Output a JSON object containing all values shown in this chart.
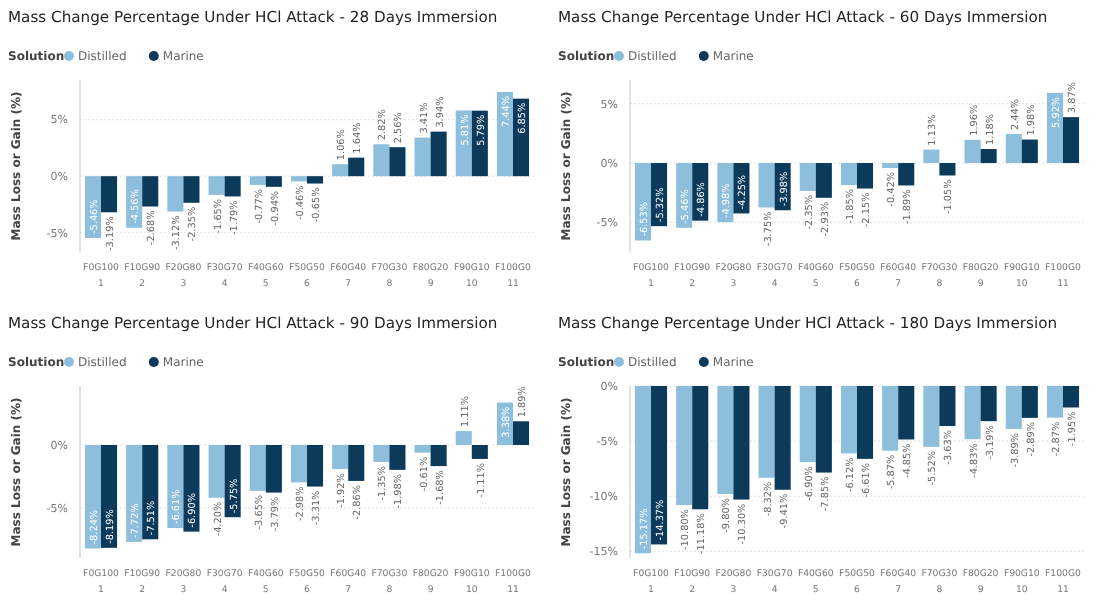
{
  "chart_data": [
    {
      "type": "bar",
      "title": "Mass Change Percentage Under HCl Attack - 28 Days Immersion",
      "legend_title": "Solution",
      "legend": "top left",
      "ylabel": "Mass Loss or Gain (%)",
      "grid": "y",
      "categories": [
        "F0G100\n1",
        "F10G90\n2",
        "F20G80\n3",
        "F30G70\n4",
        "F40G60\n5",
        "F50G50\n6",
        "F60G40\n7",
        "F70G30\n8",
        "F80G20\n9",
        "F90G10\n10",
        "F100G0\n11"
      ],
      "ylim": [
        -6.7,
        8.5
      ],
      "yticks": [
        {
          "value": -5,
          "label": "-5%"
        },
        {
          "value": 0,
          "label": "0%"
        },
        {
          "value": 5,
          "label": "5%"
        }
      ],
      "series": [
        {
          "name": "Distilled",
          "color": "#8dbfdd",
          "values": [
            -5.46,
            -4.56,
            -3.12,
            -1.65,
            -0.77,
            -0.46,
            1.06,
            2.82,
            3.41,
            5.81,
            7.44
          ],
          "value_labels": [
            "-5.46%",
            "-4.56%",
            "-3.12%",
            "-1.65%",
            "-0.77%",
            "-0.46%",
            "1.06%",
            "2.82%",
            "3.41%",
            "5.81%",
            "7.44%"
          ]
        },
        {
          "name": "Marine",
          "color": "#0b3a5a",
          "values": [
            -3.19,
            -2.68,
            -2.35,
            -1.79,
            -0.94,
            -0.65,
            1.64,
            2.56,
            3.94,
            5.79,
            6.85
          ],
          "value_labels": [
            "-3.19%",
            "-2.68%",
            "-2.35%",
            "-1.79%",
            "-0.94%",
            "-0.65%",
            "1.64%",
            "2.56%",
            "3.94%",
            "5.79%",
            "6.85%"
          ]
        }
      ]
    },
    {
      "type": "bar",
      "title": "Mass Change Percentage Under HCl Attack - 60 Days Immersion",
      "legend_title": "Solution",
      "legend": "top left",
      "ylabel": "Mass Loss or Gain (%)",
      "grid": "y",
      "categories": [
        "F0G100\n1",
        "F10G90\n2",
        "F20G80\n3",
        "F30G70\n4",
        "F40G60\n5",
        "F50G50\n6",
        "F60G40\n7",
        "F70G30\n8",
        "F80G20\n9",
        "F90G10\n10",
        "F100G0\n11"
      ],
      "ylim": [
        -7.5,
        7
      ],
      "yticks": [
        {
          "value": -5,
          "label": "-5%"
        },
        {
          "value": 0,
          "label": "0%"
        },
        {
          "value": 5,
          "label": "5%"
        }
      ],
      "series": [
        {
          "name": "Distilled",
          "color": "#8dbfdd",
          "values": [
            -6.53,
            -5.46,
            -4.98,
            -3.75,
            -2.35,
            -1.85,
            -0.42,
            1.13,
            1.96,
            2.44,
            5.92
          ],
          "value_labels": [
            "-6.53%",
            "-5.46%",
            "-4.98%",
            "-3.75%",
            "-2.35%",
            "-1.85%",
            "-0.42%",
            "1.13%",
            "1.96%",
            "2.44%",
            "5.92%"
          ]
        },
        {
          "name": "Marine",
          "color": "#0b3a5a",
          "values": [
            -5.32,
            -4.86,
            -4.25,
            -3.98,
            -2.93,
            -2.15,
            -1.89,
            -1.05,
            1.18,
            1.98,
            3.87
          ],
          "value_labels": [
            "-5.32%",
            "-4.86%",
            "-4.25%",
            "-3.98%",
            "-2.93%",
            "-2.15%",
            "-1.89%",
            "-1.05%",
            "1.18%",
            "1.98%",
            "3.87%"
          ]
        }
      ]
    },
    {
      "type": "bar",
      "title": "Mass Change Percentage Under HCl Attack - 90 Days Immersion",
      "legend_title": "Solution",
      "legend": "top left",
      "ylabel": "Mass Loss or Gain (%)",
      "grid": "y",
      "categories": [
        "F0G100\n1",
        "F10G90\n2",
        "F20G80\n3",
        "F30G70\n4",
        "F40G60\n5",
        "F50G50\n6",
        "F60G40\n7",
        "F70G30\n8",
        "F80G20\n9",
        "F90G10\n10",
        "F100G0\n11"
      ],
      "ylim": [
        -9,
        4.7
      ],
      "yticks": [
        {
          "value": -5,
          "label": "-5%"
        },
        {
          "value": 0,
          "label": "0%"
        }
      ],
      "series": [
        {
          "name": "Distilled",
          "color": "#8dbfdd",
          "values": [
            -8.24,
            -7.72,
            -6.61,
            -4.2,
            -3.65,
            -2.98,
            -1.92,
            -1.35,
            -0.61,
            1.11,
            3.38
          ],
          "value_labels": [
            "-8.24%",
            "-7.72%",
            "-6.61%",
            "-4.20%",
            "-3.65%",
            "-2.98%",
            "-1.92%",
            "-1.35%",
            "-0.61%",
            "1.11%",
            "3.38%"
          ]
        },
        {
          "name": "Marine",
          "color": "#0b3a5a",
          "values": [
            -8.19,
            -7.51,
            -6.9,
            -5.75,
            -3.79,
            -3.31,
            -2.86,
            -1.98,
            -1.68,
            -1.11,
            1.89
          ],
          "value_labels": [
            "-8.19%",
            "-7.51%",
            "-6.90%",
            "-5.75%",
            "-3.79%",
            "-3.31%",
            "-2.86%",
            "-1.98%",
            "-1.68%",
            "-1.11%",
            "1.89%"
          ]
        }
      ]
    },
    {
      "type": "bar",
      "title": "Mass Change Percentage Under HCl Attack - 180 Days Immersion",
      "legend_title": "Solution",
      "legend": "top left",
      "ylabel": "Mass Loss or Gain (%)",
      "grid": "y",
      "categories": [
        "F0G100\n1",
        "F10G90\n2",
        "F20G80\n3",
        "F30G70\n4",
        "F40G60\n5",
        "F50G50\n6",
        "F60G40\n7",
        "F70G30\n8",
        "F80G20\n9",
        "F90G10\n10",
        "F100G0\n11"
      ],
      "ylim": [
        -15.6,
        0
      ],
      "yticks": [
        {
          "value": -15,
          "label": "-15%"
        },
        {
          "value": -10,
          "label": "-10%"
        },
        {
          "value": -5,
          "label": "-5%"
        },
        {
          "value": 0,
          "label": "0%"
        }
      ],
      "series": [
        {
          "name": "Distilled",
          "color": "#8dbfdd",
          "values": [
            -15.17,
            -10.8,
            -9.8,
            -8.32,
            -6.9,
            -6.12,
            -5.87,
            -5.52,
            -4.83,
            -3.89,
            -2.87
          ],
          "value_labels": [
            "-15.17%",
            "-10.80%",
            "-9.80%",
            "-8.32%",
            "-6.90%",
            "-6.12%",
            "-5.87%",
            "-5.52%",
            "-4.83%",
            "-3.89%",
            "-2.87%"
          ]
        },
        {
          "name": "Marine",
          "color": "#0b3a5a",
          "values": [
            -14.37,
            -11.18,
            -10.3,
            -9.41,
            -7.85,
            -6.61,
            -4.85,
            -3.63,
            -3.19,
            -2.89,
            -1.95
          ],
          "value_labels": [
            "-14.37%",
            "-11.18%",
            "-10.30%",
            "-9.41%",
            "-7.85%",
            "-6.61%",
            "-4.85%",
            "-3.63%",
            "-3.19%",
            "-2.89%",
            "-1.95%"
          ]
        }
      ]
    }
  ]
}
